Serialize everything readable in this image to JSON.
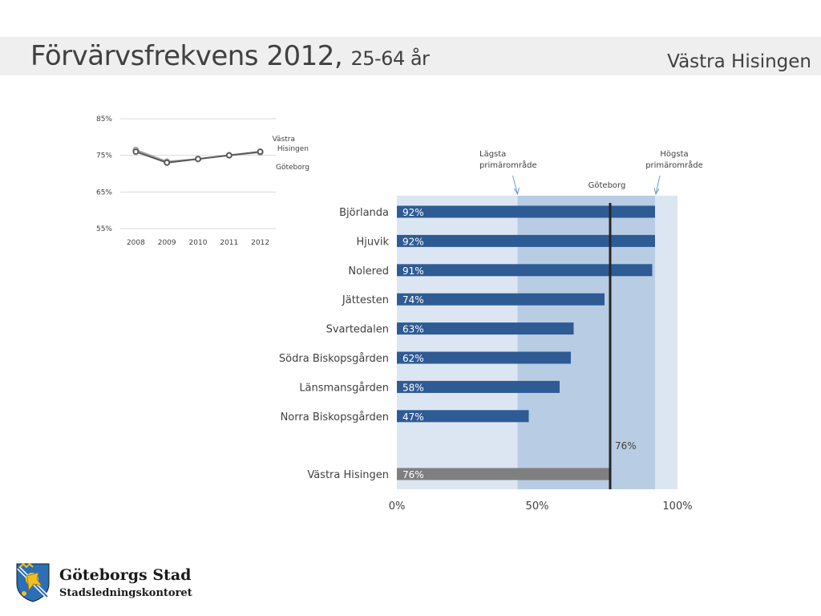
{
  "header": {
    "title": "Förvärvsfrekvens 2012,",
    "subtitle": "25-64 år",
    "area": "Västra Hisingen"
  },
  "colors": {
    "bar": "#2e5b94",
    "total_bar": "#7f7f7f",
    "band_outer": "#dce6f2",
    "band_inner": "#b8cce4",
    "reference_line": "#262626",
    "arrow": "#6a9ad6",
    "series_area": "#595959",
    "series_city": "#a6a6a6"
  },
  "chart_data": [
    {
      "type": "line",
      "x": [
        "2008",
        "2009",
        "2010",
        "2011",
        "2012"
      ],
      "ylim": [
        55,
        85
      ],
      "yticks": [
        "55%",
        "65%",
        "75%",
        "85%"
      ],
      "series": [
        {
          "name": "Västra Hisingen",
          "values": [
            76,
            73,
            74,
            75,
            76
          ]
        },
        {
          "name": "Göteborg",
          "values": [
            76.5,
            73.3,
            74,
            75,
            75.8
          ]
        }
      ],
      "legend": [
        "Västra",
        "Hisingen",
        "Göteborg"
      ]
    },
    {
      "type": "bar",
      "orientation": "horizontal",
      "categories": [
        "Björlanda",
        "Hjuvik",
        "Nolered",
        "Jättesten",
        "Svartedalen",
        "Södra Biskopsgården",
        "Länsmansgården",
        "Norra Biskopsgården"
      ],
      "values": [
        92,
        92,
        91,
        74,
        63,
        62,
        58,
        47
      ],
      "value_labels": [
        "92%",
        "92%",
        "91%",
        "74%",
        "63%",
        "62%",
        "58%",
        "47%"
      ],
      "total": {
        "label": "Västra Hisingen",
        "value": 76,
        "value_label": "76%"
      },
      "reference": {
        "label": "Göteborg",
        "value": 76,
        "value_label": "76%"
      },
      "range_low": {
        "label": [
          "Lägsta",
          "primärområde"
        ],
        "value": 43
      },
      "range_high": {
        "label": [
          "Högsta",
          "primärområde"
        ],
        "value": 92
      },
      "xlim": [
        0,
        100
      ],
      "xticks": [
        {
          "value": 0,
          "label": "0%"
        },
        {
          "value": 50,
          "label": "50%"
        },
        {
          "value": 100,
          "label": "100%"
        }
      ]
    }
  ],
  "logo": {
    "name": "Göteborgs Stad",
    "department": "Stadsledningskontoret"
  }
}
